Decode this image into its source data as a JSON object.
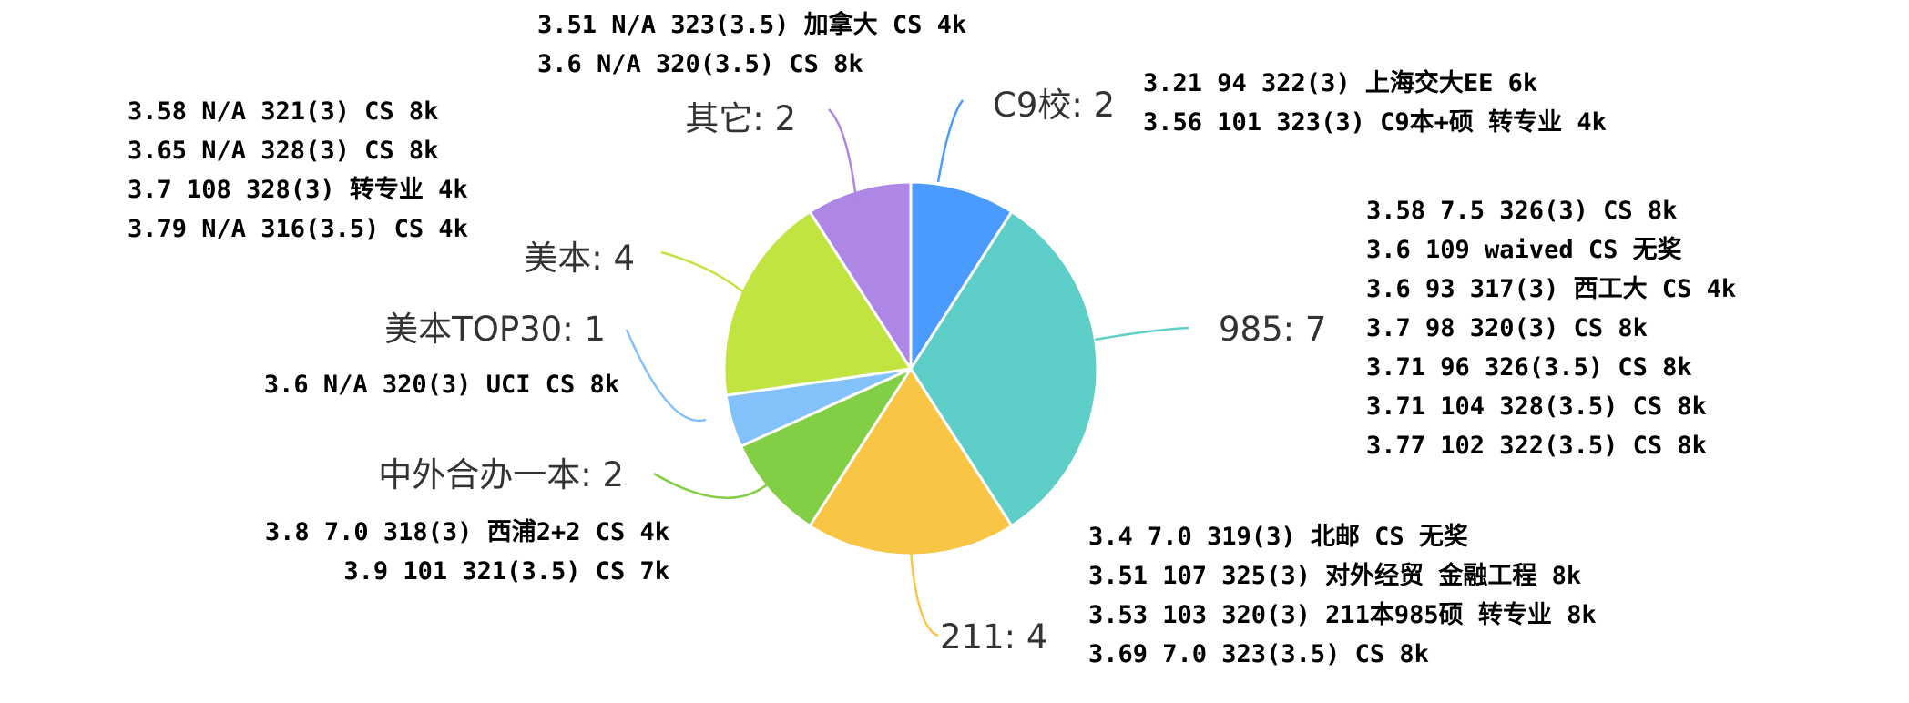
{
  "chart_data": {
    "type": "pie",
    "slices": [
      {
        "label": "C9校",
        "value": 2,
        "color": "#4B9BFF",
        "notes": [
          "3.21 94  322(3) 上海交大EE 6k",
          "3.56 101 323(3) C9本+硕 转专业 4k"
        ]
      },
      {
        "label": "985",
        "value": 7,
        "color": "#5ECFC8",
        "notes": [
          "3.58 7.5 326(3) CS 8k",
          "3.6  109 waived CS 无奖",
          "3.6  93  317(3) 西工大 CS 4k",
          "3.7  98  320(3) CS 8k",
          "3.71 96  326(3.5) CS 8k",
          "3.71 104 328(3.5) CS 8k",
          "3.77 102 322(3.5) CS 8k"
        ]
      },
      {
        "label": "211",
        "value": 4,
        "color": "#F8C544",
        "notes": [
          "3.4  7.0 319(3) 北邮 CS 无奖",
          "3.51 107 325(3) 对外经贸 金融工程 8k",
          "3.53 103 320(3) 211本985硕 转专业 8k",
          "3.69 7.0 323(3.5) CS 8k"
        ]
      },
      {
        "label": "中外合办一本",
        "value": 2,
        "color": "#82CE45",
        "notes": [
          "3.8 7.0 318(3) 西浦2+2 CS 4k",
          "3.9 101 321(3.5) CS 7k"
        ]
      },
      {
        "label": "美本TOP30",
        "value": 1,
        "color": "#82C1FA",
        "notes": [
          "3.6 N/A 320(3) UCI CS 8k"
        ]
      },
      {
        "label": "美本",
        "value": 4,
        "color": "#C1E440",
        "notes": [
          "3.58 N/A 321(3) CS 8k",
          "3.65 N/A 328(3) CS 8k",
          "3.7  108 328(3) 转专业 4k",
          "3.79 N/A 316(3.5) CS 4k"
        ]
      },
      {
        "label": "其它",
        "value": 2,
        "color": "#AD86E6",
        "notes": [
          "3.51 N/A 323(3.5) 加拿大 CS 4k",
          "3.6  N/A 320(3.5) CS 8k"
        ]
      }
    ]
  }
}
